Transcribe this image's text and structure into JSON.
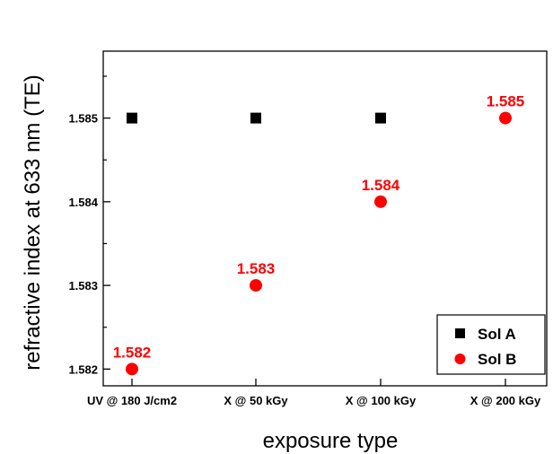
{
  "chart_data": {
    "type": "scatter",
    "title": "",
    "xlabel": "exposure type",
    "ylabel": "refractive index at 633 nm (TE)",
    "categories": [
      "UV @ 180 J/cm2",
      "X @ 50 kGy",
      "X @ 100 kGy",
      "X @ 200 kGy"
    ],
    "ylim": [
      1.5818,
      1.5858
    ],
    "yticks": [
      "1.582",
      "1.583",
      "1.584",
      "1.585"
    ],
    "grid": false,
    "legend_position": "bottom-right",
    "series": [
      {
        "name": "Sol A",
        "marker": "square",
        "color": "#000000",
        "values": [
          1.585,
          1.585,
          1.585,
          null
        ]
      },
      {
        "name": "Sol B",
        "marker": "circle",
        "color": "#ff0000",
        "values": [
          1.582,
          1.583,
          1.584,
          1.585
        ],
        "labels": [
          "1.582",
          "1.583",
          "1.584",
          "1.585"
        ]
      }
    ]
  }
}
